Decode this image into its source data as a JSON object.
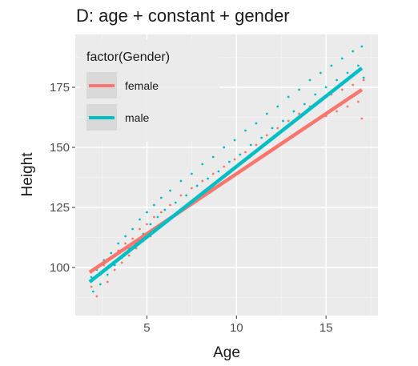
{
  "chart_data": {
    "type": "scatter",
    "title": "D: age + constant + gender",
    "xlabel": "Age",
    "ylabel": "Height",
    "xlim": [
      1.0,
      17.9
    ],
    "ylim": [
      80,
      197
    ],
    "x_ticks": [
      5,
      10,
      15
    ],
    "y_ticks": [
      100,
      125,
      150,
      175
    ],
    "grid": true,
    "legend": {
      "title": "factor(Gender)",
      "placement": "top-left",
      "entries": [
        "female",
        "male"
      ]
    },
    "series": [
      {
        "name": "female",
        "color": "#F8766D",
        "fit_line": {
          "x": [
            1.8,
            17.0
          ],
          "y": [
            98,
            174
          ]
        },
        "points": [
          [
            1.9,
            92
          ],
          [
            2.0,
            95
          ],
          [
            2.2,
            88
          ],
          [
            2.4,
            97
          ],
          [
            2.6,
            101
          ],
          [
            2.8,
            94
          ],
          [
            3.0,
            104
          ],
          [
            3.2,
            99
          ],
          [
            3.4,
            107
          ],
          [
            3.6,
            102
          ],
          [
            3.8,
            110
          ],
          [
            4.0,
            105
          ],
          [
            4.2,
            112
          ],
          [
            4.4,
            108
          ],
          [
            4.6,
            116
          ],
          [
            4.8,
            111
          ],
          [
            5.0,
            118
          ],
          [
            5.2,
            113
          ],
          [
            5.4,
            121
          ],
          [
            5.6,
            117
          ],
          [
            5.8,
            123
          ],
          [
            6.0,
            119
          ],
          [
            6.3,
            126
          ],
          [
            6.6,
            122
          ],
          [
            6.9,
            130
          ],
          [
            7.2,
            125
          ],
          [
            7.5,
            133
          ],
          [
            7.8,
            128
          ],
          [
            8.1,
            136
          ],
          [
            8.4,
            131
          ],
          [
            8.7,
            139
          ],
          [
            9.0,
            134
          ],
          [
            9.3,
            142
          ],
          [
            9.6,
            137
          ],
          [
            9.9,
            145
          ],
          [
            10.2,
            140
          ],
          [
            10.5,
            148
          ],
          [
            10.8,
            143
          ],
          [
            11.1,
            151
          ],
          [
            11.4,
            146
          ],
          [
            11.7,
            155
          ],
          [
            12.0,
            149
          ],
          [
            12.3,
            158
          ],
          [
            12.6,
            152
          ],
          [
            12.9,
            161
          ],
          [
            13.2,
            155
          ],
          [
            13.5,
            164
          ],
          [
            13.8,
            158
          ],
          [
            14.1,
            167
          ],
          [
            14.4,
            161
          ],
          [
            14.7,
            170
          ],
          [
            15.0,
            163
          ],
          [
            15.3,
            172
          ],
          [
            15.6,
            165
          ],
          [
            15.9,
            174
          ],
          [
            16.2,
            167
          ],
          [
            16.5,
            176
          ],
          [
            16.8,
            169
          ],
          [
            17.0,
            162
          ],
          [
            17.1,
            178
          ]
        ]
      },
      {
        "name": "male",
        "color": "#00BFC4",
        "fit_line": {
          "x": [
            1.8,
            17.0
          ],
          "y": [
            94,
            183
          ]
        },
        "points": [
          [
            1.9,
            96
          ],
          [
            2.0,
            90
          ],
          [
            2.2,
            99
          ],
          [
            2.4,
            93
          ],
          [
            2.6,
            103
          ],
          [
            2.8,
            97
          ],
          [
            3.0,
            106
          ],
          [
            3.2,
            101
          ],
          [
            3.4,
            110
          ],
          [
            3.6,
            104
          ],
          [
            3.8,
            113
          ],
          [
            4.0,
            108
          ],
          [
            4.2,
            116
          ],
          [
            4.4,
            111
          ],
          [
            4.6,
            120
          ],
          [
            4.8,
            114
          ],
          [
            5.0,
            123
          ],
          [
            5.2,
            118
          ],
          [
            5.4,
            126
          ],
          [
            5.6,
            121
          ],
          [
            5.8,
            129
          ],
          [
            6.0,
            124
          ],
          [
            6.3,
            132
          ],
          [
            6.6,
            127
          ],
          [
            6.9,
            136
          ],
          [
            7.2,
            130
          ],
          [
            7.5,
            139
          ],
          [
            7.8,
            134
          ],
          [
            8.1,
            143
          ],
          [
            8.4,
            137
          ],
          [
            8.7,
            146
          ],
          [
            9.0,
            140
          ],
          [
            9.3,
            150
          ],
          [
            9.6,
            144
          ],
          [
            9.9,
            153
          ],
          [
            10.2,
            147
          ],
          [
            10.5,
            157
          ],
          [
            10.8,
            151
          ],
          [
            11.1,
            160
          ],
          [
            11.4,
            154
          ],
          [
            11.7,
            164
          ],
          [
            12.0,
            158
          ],
          [
            12.3,
            167
          ],
          [
            12.6,
            161
          ],
          [
            12.9,
            171
          ],
          [
            13.2,
            165
          ],
          [
            13.5,
            174
          ],
          [
            13.8,
            168
          ],
          [
            14.1,
            178
          ],
          [
            14.4,
            172
          ],
          [
            14.7,
            181
          ],
          [
            15.0,
            175
          ],
          [
            15.3,
            184
          ],
          [
            15.6,
            178
          ],
          [
            15.9,
            187
          ],
          [
            16.2,
            181
          ],
          [
            16.5,
            190
          ],
          [
            16.8,
            184
          ],
          [
            17.0,
            192
          ],
          [
            17.1,
            179
          ]
        ]
      }
    ]
  }
}
